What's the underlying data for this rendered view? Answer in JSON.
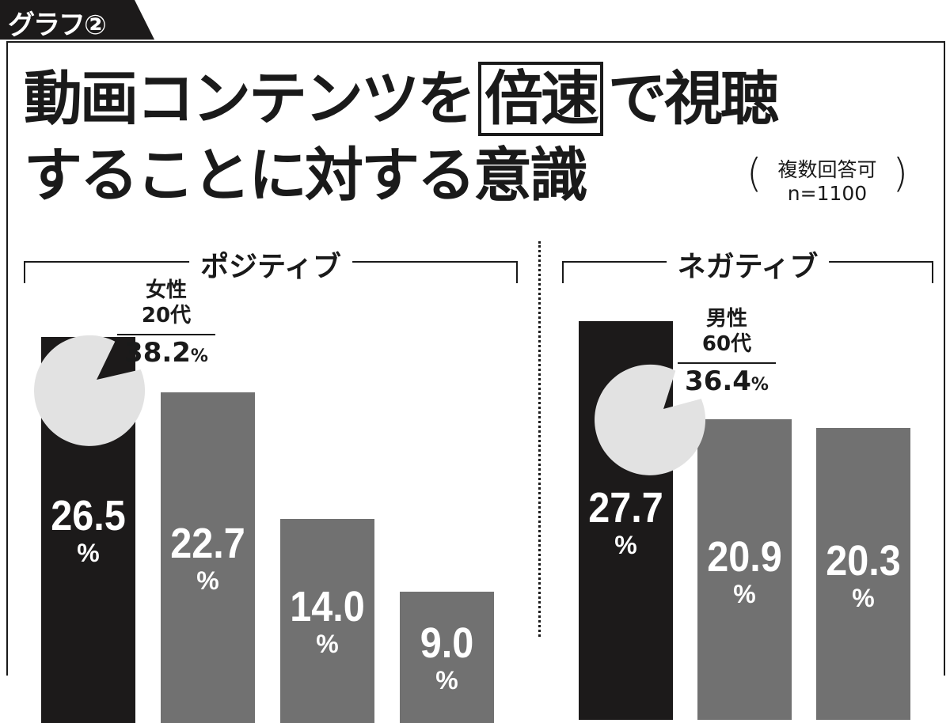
{
  "tab_label": "グラフ②",
  "title": {
    "line1_pre": "動画コンテンツを",
    "line1_boxed": "倍速",
    "line1_post": "で視聴",
    "line2": "することに対する意識",
    "note_line1": "複数回答可",
    "note_line2": "n=1100"
  },
  "colors": {
    "highlight": "#1c1a1a",
    "bar": "#717171",
    "bubble": "#e2e2e2"
  },
  "chart_data": [
    {
      "type": "bar",
      "title": "ポジティブ",
      "values": [
        26.5,
        22.7,
        14.0,
        9.0
      ],
      "value_labels": [
        "26.5",
        "22.7",
        "14.0",
        "9.0"
      ],
      "unit": "%",
      "highlight_index": 0,
      "callout": {
        "line1": "女性",
        "line2": "20代",
        "value": "38.2",
        "unit": "%"
      }
    },
    {
      "type": "bar",
      "title": "ネガティブ",
      "values": [
        27.7,
        20.9,
        20.3
      ],
      "value_labels": [
        "27.7",
        "20.9",
        "20.3"
      ],
      "unit": "%",
      "highlight_index": 0,
      "callout": {
        "line1": "男性",
        "line2": "60代",
        "value": "36.4",
        "unit": "%"
      }
    }
  ]
}
